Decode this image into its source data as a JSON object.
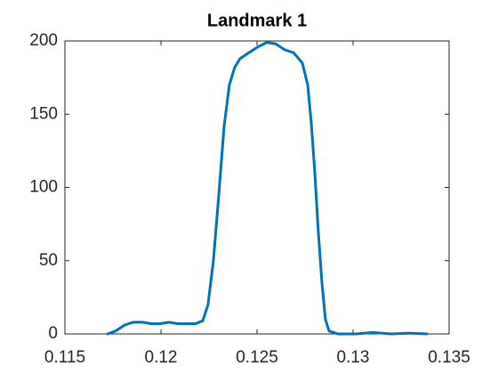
{
  "chart_data": {
    "type": "line",
    "title": "Landmark 1",
    "x": [
      0.11722,
      0.11764,
      0.1181,
      0.11856,
      0.11903,
      0.11949,
      0.11995,
      0.12042,
      0.12088,
      0.12134,
      0.1218,
      0.12218,
      0.12245,
      0.12273,
      0.12301,
      0.12329,
      0.12356,
      0.12384,
      0.12412,
      0.12458,
      0.12505,
      0.12551,
      0.12597,
      0.12644,
      0.1269,
      0.12736,
      0.12764,
      0.12782,
      0.12801,
      0.12819,
      0.12838,
      0.12856,
      0.12875,
      0.12921,
      0.13014,
      0.13106,
      0.13199,
      0.13292,
      0.13384
    ],
    "series": [
      {
        "color": "#0072bd",
        "values": [
          0,
          2,
          6,
          8,
          8,
          7,
          7,
          8,
          7,
          7,
          7,
          9,
          20,
          50,
          95,
          142,
          170,
          182,
          188,
          192,
          196,
          199,
          198,
          194,
          192,
          185,
          170,
          145,
          110,
          70,
          35,
          10,
          2,
          0,
          0,
          1,
          0,
          0.5,
          0
        ]
      }
    ],
    "xlim": [
      0.115,
      0.135
    ],
    "xticks": [
      0.115,
      0.12,
      0.125,
      0.13,
      0.135
    ],
    "ylim": [
      0,
      200
    ],
    "yticks": [
      0,
      50,
      100,
      150,
      200
    ],
    "grid": false
  }
}
